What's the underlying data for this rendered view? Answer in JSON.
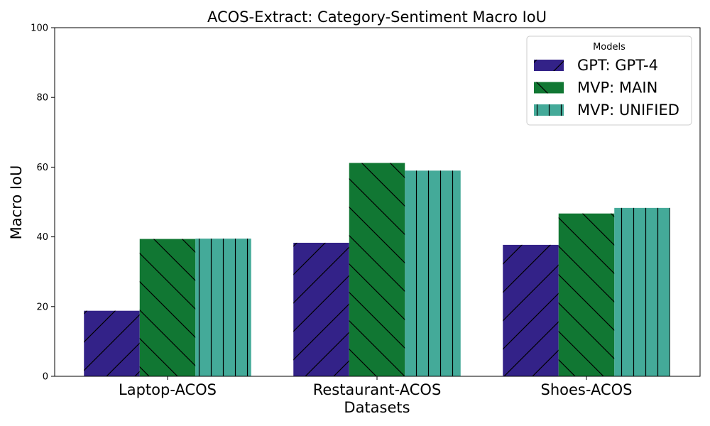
{
  "chart_data": {
    "type": "bar",
    "title": "ACOS-Extract: Category-Sentiment Macro IoU",
    "xlabel": "Datasets",
    "ylabel": "Macro IoU",
    "categories": [
      "Laptop-ACOS",
      "Restaurant-ACOS",
      "Shoes-ACOS"
    ],
    "ylim": [
      0,
      100
    ],
    "yticks": [
      0,
      20,
      40,
      60,
      80,
      100
    ],
    "grid": false,
    "legend": {
      "title": "Models",
      "placement": "top-right"
    },
    "series": [
      {
        "name": "GPT: GPT-4",
        "values": [
          18.8,
          38.3,
          37.7
        ],
        "color": "#332288",
        "hatch": "/"
      },
      {
        "name": "MVP: MAIN",
        "values": [
          39.4,
          61.2,
          46.7
        ],
        "color": "#117733",
        "hatch": "\\"
      },
      {
        "name": "MVP: UNIFIED",
        "values": [
          39.5,
          59.0,
          48.3
        ],
        "color": "#44AA99",
        "hatch": "|"
      }
    ]
  }
}
